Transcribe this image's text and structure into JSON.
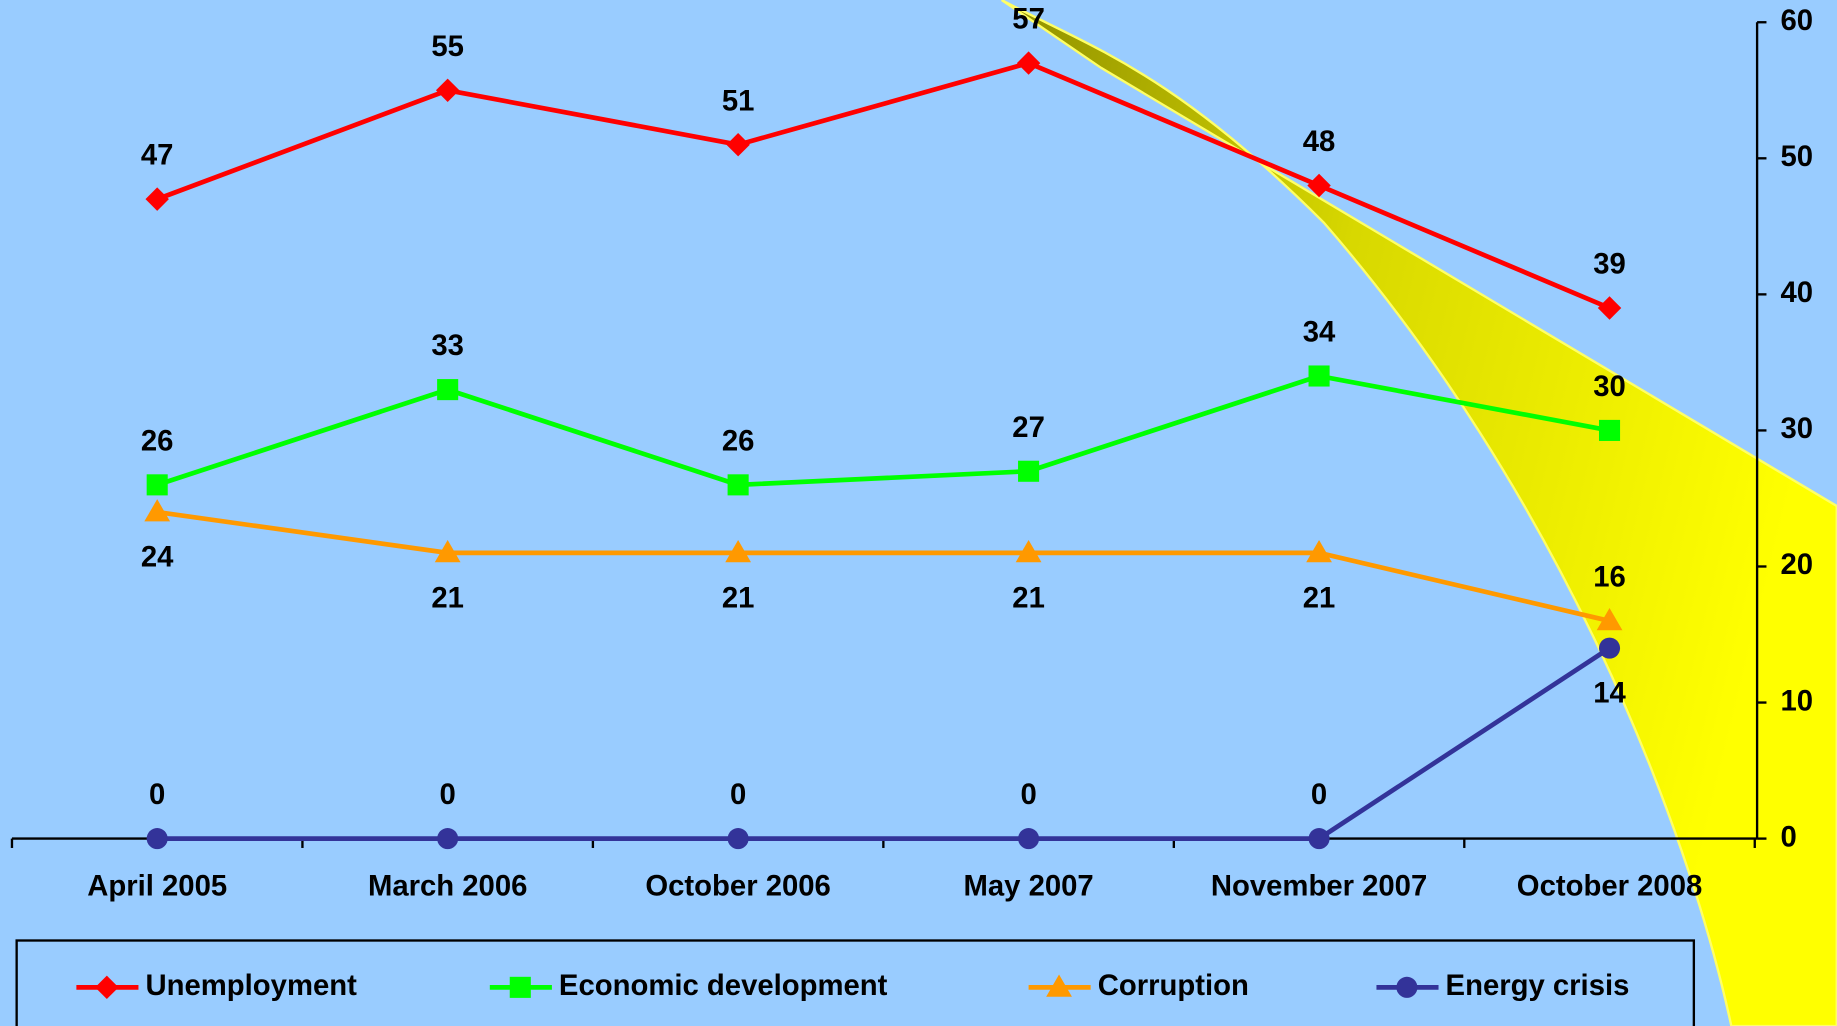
{
  "chart_data": {
    "type": "line",
    "categories": [
      "April 2005",
      "March 2006",
      "October 2006",
      "May 2007",
      "November 2007",
      "October 2008"
    ],
    "series": [
      {
        "name": "Unemployment",
        "color": "#ff0000",
        "marker": "diamond",
        "values": [
          47,
          55,
          51,
          57,
          48,
          39
        ]
      },
      {
        "name": "Economic development",
        "color": "#00ff00",
        "marker": "square",
        "values": [
          26,
          33,
          26,
          27,
          34,
          30
        ]
      },
      {
        "name": "Corruption",
        "color": "#ff9900",
        "marker": "triangle",
        "values": [
          24,
          21,
          21,
          21,
          21,
          16
        ]
      },
      {
        "name": "Energy crisis",
        "color": "#333399",
        "marker": "circle",
        "values": [
          0,
          0,
          0,
          0,
          0,
          14
        ]
      }
    ],
    "ylim": [
      0,
      60
    ],
    "yticks": [
      0,
      10,
      20,
      30,
      40,
      50,
      60
    ],
    "y_axis_side": "right",
    "legend": "bottom"
  }
}
